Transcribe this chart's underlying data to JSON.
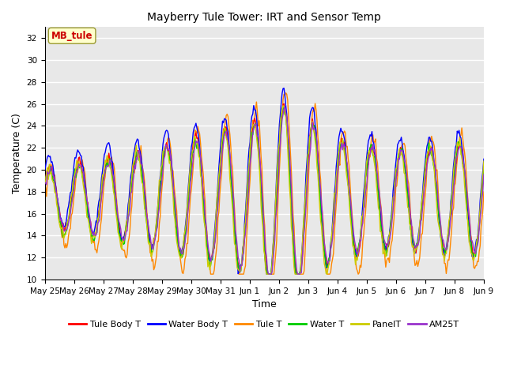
{
  "title": "Mayberry Tule Tower: IRT and Sensor Temp",
  "xlabel": "Time",
  "ylabel": "Temperature (C)",
  "ylim": [
    10,
    33
  ],
  "yticks": [
    10,
    12,
    14,
    16,
    18,
    20,
    22,
    24,
    26,
    28,
    30,
    32
  ],
  "xtick_labels": [
    "May 25",
    "May 26",
    "May 27",
    "May 28",
    "May 29",
    "May 30",
    "May 31",
    "Jun 1",
    "Jun 2",
    "Jun 3",
    "Jun 4",
    "Jun 5",
    "Jun 6",
    "Jun 7",
    "Jun 8",
    "Jun 9"
  ],
  "legend_labels": [
    "Tule Body T",
    "Water Body T",
    "Tule T",
    "Water T",
    "PanelT",
    "AM25T"
  ],
  "legend_colors": [
    "#ff0000",
    "#0000ff",
    "#ff8800",
    "#00cc00",
    "#cccc00",
    "#9933cc"
  ],
  "annotation_text": "MB_tule",
  "annotation_color": "#cc0000",
  "annotation_bg": "#ffffcc",
  "bg_color": "#e8e8e8",
  "line_width": 1.0,
  "n_points": 480,
  "figsize": [
    6.4,
    4.8
  ],
  "dpi": 100
}
